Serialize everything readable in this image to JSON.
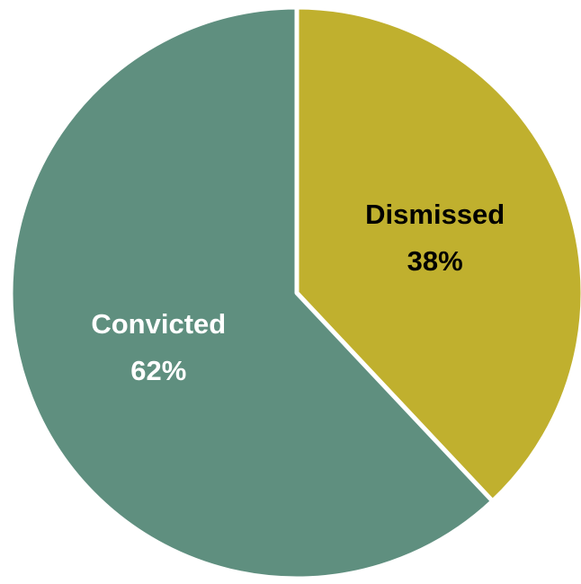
{
  "chart_data": {
    "type": "pie",
    "title": "",
    "slices": [
      {
        "name": "Dismissed",
        "percent_label": "38%",
        "value": 38,
        "color": "#C0B02E",
        "label_color": "#000000"
      },
      {
        "name": "Convicted",
        "percent_label": "62%",
        "value": 62,
        "color": "#5F8F7F",
        "label_color": "#FFFFFF"
      }
    ],
    "start_angle_deg": 0,
    "direction": "clockwise",
    "legend": "none",
    "separator_color": "#FFFFFF"
  }
}
